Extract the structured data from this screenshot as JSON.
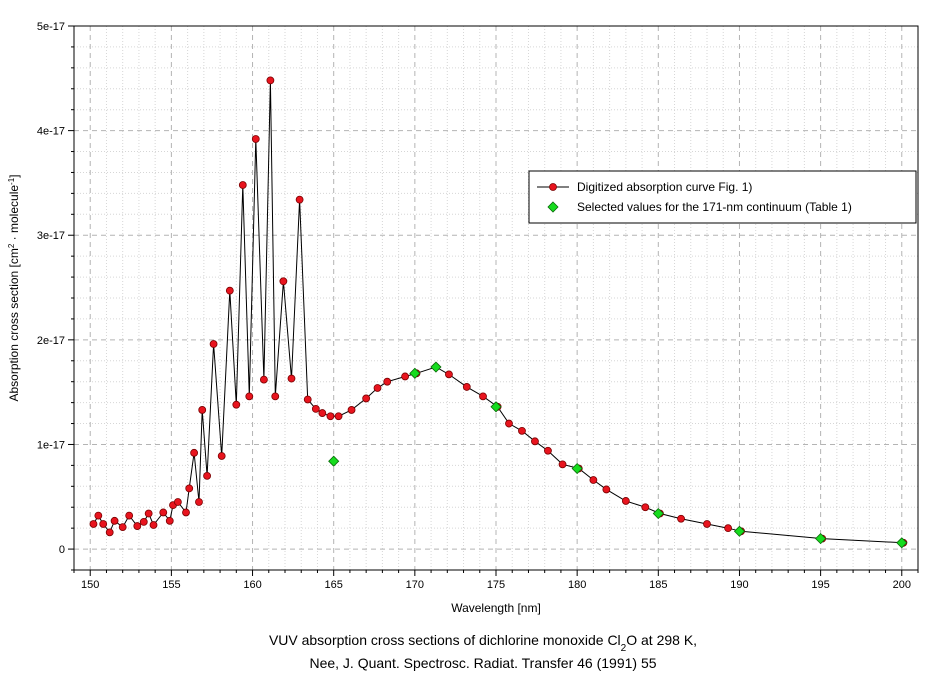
{
  "chart_data": {
    "type": "scatter",
    "xlabel": "Wavelength [nm]",
    "ylabel": {
      "prefix": "Absorption cross section [cm",
      "sup1": "2",
      "middle": " · molecule",
      "sup2": "-1",
      "suffix": "]"
    },
    "xlim": [
      149,
      201
    ],
    "ylim": [
      -2e-18,
      5e-17
    ],
    "x_ticks": [
      150,
      155,
      160,
      165,
      170,
      175,
      180,
      185,
      190,
      195,
      200
    ],
    "x_tick_labels": [
      "150",
      "155",
      "160",
      "165",
      "170",
      "175",
      "180",
      "185",
      "190",
      "195",
      "200"
    ],
    "y_ticks": [
      0,
      1e-17,
      2e-17,
      3e-17,
      4e-17,
      5e-17
    ],
    "y_tick_labels": [
      "0",
      "1e-17",
      "2e-17",
      "3e-17",
      "4e-17",
      "5e-17"
    ],
    "grid": true,
    "legend_position": "top-right",
    "caption": {
      "line1_before": "VUV absorption cross sections of dichlorine monoxide Cl",
      "line1_sub": "2",
      "line1_after": "O at 298 K,",
      "line2": "Nee, J. Quant. Spectrosc. Radiat. Transfer 46 (1991) 55"
    },
    "series": [
      {
        "name": "Digitized absorption curve Fig. 1)",
        "color": "#e8141e",
        "marker": "circle",
        "line": true,
        "x": [
          150.2,
          150.5,
          150.8,
          151.2,
          151.5,
          152.0,
          152.4,
          152.9,
          153.3,
          153.6,
          153.9,
          154.5,
          154.9,
          155.1,
          155.4,
          155.9,
          156.1,
          156.4,
          156.7,
          156.9,
          157.2,
          157.6,
          158.1,
          158.6,
          159.0,
          159.4,
          159.8,
          160.2,
          160.7,
          161.1,
          161.4,
          161.9,
          162.4,
          162.9,
          163.4,
          163.9,
          164.3,
          164.8,
          165.3,
          166.1,
          167.0,
          167.7,
          168.3,
          169.4,
          170.1,
          171.3,
          172.1,
          173.2,
          174.2,
          175.1,
          175.8,
          176.6,
          177.4,
          178.2,
          179.1,
          180.1,
          181.0,
          181.8,
          183.0,
          184.2,
          185.1,
          186.4,
          188.0,
          189.3,
          190.1,
          195.1,
          200.1
        ],
        "y": [
          2.4e-18,
          3.2e-18,
          2.4e-18,
          1.6e-18,
          2.7e-18,
          2.1e-18,
          3.2e-18,
          2.2e-18,
          2.6e-18,
          3.4e-18,
          2.3e-18,
          3.5e-18,
          2.7e-18,
          4.2e-18,
          4.5e-18,
          3.5e-18,
          5.8e-18,
          9.2e-18,
          4.5e-18,
          1.33e-17,
          7e-18,
          1.96e-17,
          8.9e-18,
          2.47e-17,
          1.38e-17,
          3.48e-17,
          1.46e-17,
          3.92e-17,
          1.62e-17,
          4.48e-17,
          1.46e-17,
          2.56e-17,
          1.63e-17,
          3.34e-17,
          1.43e-17,
          1.34e-17,
          1.3e-17,
          1.27e-17,
          1.27e-17,
          1.33e-17,
          1.44e-17,
          1.54e-17,
          1.6e-17,
          1.65e-17,
          1.68e-17,
          1.74e-17,
          1.67e-17,
          1.55e-17,
          1.46e-17,
          1.36e-17,
          1.2e-17,
          1.13e-17,
          1.03e-17,
          9.4e-18,
          8.1e-18,
          7.7e-18,
          6.6e-18,
          5.7e-18,
          4.6e-18,
          4e-18,
          3.4e-18,
          2.9e-18,
          2.4e-18,
          2e-18,
          1.7e-18,
          1e-18,
          6e-19
        ]
      },
      {
        "name": "Selected values for the 171-nm continuum (Table 1)",
        "color": "#16dc1e",
        "marker": "diamond",
        "line": false,
        "x": [
          165,
          170,
          171.3,
          175,
          180,
          185,
          190,
          195,
          200
        ],
        "y": [
          8.4e-18,
          1.68e-17,
          1.74e-17,
          1.36e-17,
          7.7e-18,
          3.4e-18,
          1.7e-18,
          1e-18,
          6e-19
        ]
      }
    ]
  }
}
